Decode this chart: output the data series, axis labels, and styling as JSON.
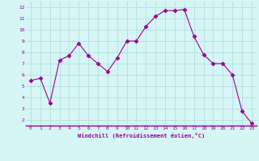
{
  "x": [
    0,
    1,
    2,
    3,
    4,
    5,
    6,
    7,
    8,
    9,
    10,
    11,
    12,
    13,
    14,
    15,
    16,
    17,
    18,
    19,
    20,
    21,
    22,
    23
  ],
  "y": [
    5.5,
    5.7,
    3.5,
    7.3,
    7.7,
    8.8,
    7.7,
    7.0,
    6.3,
    7.5,
    9.0,
    9.0,
    10.3,
    11.2,
    11.7,
    11.7,
    11.8,
    9.4,
    7.8,
    7.0,
    7.0,
    6.0,
    2.8,
    1.7
  ],
  "line_color": "#990099",
  "marker": "D",
  "marker_size": 2.5,
  "bg_color": "#d6f5f5",
  "grid_color": "#aadddd",
  "xlabel": "Windchill (Refroidissement éolien,°C)",
  "xlabel_color": "#990099",
  "tick_color": "#990099",
  "border_color": "#990099",
  "xlim": [
    -0.5,
    23.5
  ],
  "ylim": [
    1.5,
    12.5
  ],
  "yticks": [
    2,
    3,
    4,
    5,
    6,
    7,
    8,
    9,
    10,
    11,
    12
  ],
  "xticks": [
    0,
    1,
    2,
    3,
    4,
    5,
    6,
    7,
    8,
    9,
    10,
    11,
    12,
    13,
    14,
    15,
    16,
    17,
    18,
    19,
    20,
    21,
    22,
    23
  ]
}
